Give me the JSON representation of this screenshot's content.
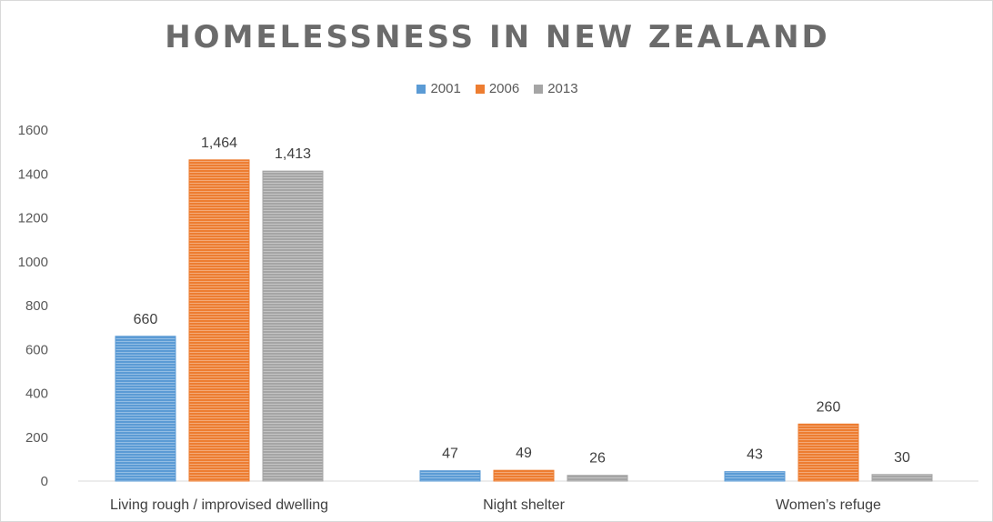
{
  "chart_data": {
    "type": "bar",
    "title": "HOMELESSNESS IN NEW ZEALAND",
    "xlabel": "",
    "ylabel": "",
    "categories": [
      "Living rough / improvised dwelling",
      "Night shelter",
      "Women’s refuge"
    ],
    "series": [
      {
        "name": "2001",
        "color": "#5b9bd5",
        "values": [
          660,
          47,
          43
        ],
        "labels": [
          "660",
          "47",
          "43"
        ]
      },
      {
        "name": "2006",
        "color": "#ed7d31",
        "values": [
          1464,
          49,
          260
        ],
        "labels": [
          "1,464",
          "49",
          "260"
        ]
      },
      {
        "name": "2013",
        "color": "#a5a5a5",
        "values": [
          1413,
          26,
          30
        ],
        "labels": [
          "1,413",
          "26",
          "30"
        ]
      }
    ],
    "ylim": [
      0,
      1600
    ],
    "yticks": [
      "0",
      "200",
      "400",
      "600",
      "800",
      "1000",
      "1200",
      "1400",
      "1600"
    ],
    "grid": false,
    "legend_position": "top-center"
  }
}
